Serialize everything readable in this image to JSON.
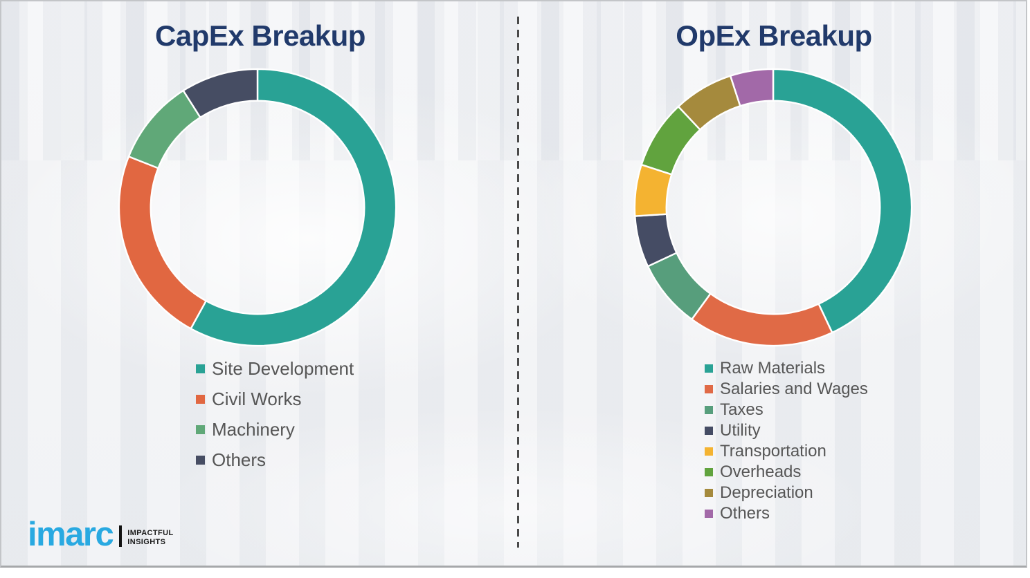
{
  "colors": {
    "title_navy": "#213a6b",
    "legend_text": "#565656",
    "divider": "#4a4a4a",
    "brand_blue": "#29a9e1",
    "tagline_black": "#1a1a1a",
    "border_gray": "#c3c5c8"
  },
  "logo": {
    "wordmark": "imarc",
    "tagline_line1": "IMPACTFUL",
    "tagline_line2": "INSIGHTS"
  },
  "chart_data": [
    {
      "type": "donut",
      "title": "CapEx Breakup",
      "categories": [
        "Site Development",
        "Civil Works",
        "Machinery",
        "Others"
      ],
      "values": [
        58,
        23,
        10,
        9
      ],
      "colors": [
        "#29a295",
        "#e16741",
        "#60a878",
        "#464d63"
      ],
      "start_angle_deg": 0,
      "direction": "clockwise",
      "ring_outer_radius": 205,
      "ring_inner_radius": 158,
      "legend_position": "below-left"
    },
    {
      "type": "donut",
      "title": "OpEx Breakup",
      "categories": [
        "Raw Materials",
        "Salaries and Wages",
        "Taxes",
        "Utility",
        "Transportation",
        "Overheads",
        "Depreciation",
        "Others"
      ],
      "values": [
        43,
        17,
        8,
        6,
        6,
        8,
        7,
        5
      ],
      "colors": [
        "#29a295",
        "#e06a46",
        "#579e7c",
        "#454c64",
        "#f4b331",
        "#61a33e",
        "#a58a3d",
        "#a269a8"
      ],
      "start_angle_deg": 0,
      "direction": "clockwise",
      "ring_outer_radius": 205,
      "ring_inner_radius": 158,
      "legend_position": "below-left"
    }
  ]
}
